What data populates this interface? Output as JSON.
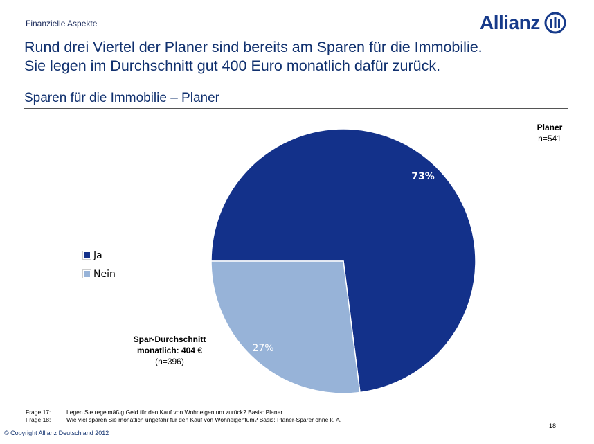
{
  "header": {
    "section": "Finanzielle Aspekte",
    "logo": "Allianz",
    "title_line1": "Rund drei Viertel der Planer sind bereits am Sparen für die Immobilie.",
    "title_line2": "Sie legen im Durchschnitt gut 400 Euro monatlich dafür zurück.",
    "subtitle": "Sparen für die Immobilie – Planer"
  },
  "chart_data": {
    "type": "pie",
    "title": "Planer",
    "n_label": "n=541",
    "slices": [
      {
        "name": "Ja",
        "value": 73,
        "label": "73%",
        "color": "#13318a"
      },
      {
        "name": "Nein",
        "value": 27,
        "label": "27%",
        "color": "#97b3d8"
      }
    ],
    "legend_placement": "left",
    "annotation": {
      "line1": "Spar-Durchschnitt",
      "line2": "monatlich: 404 €",
      "line3": "(n=396)"
    }
  },
  "footer": {
    "notes": [
      {
        "q": "Frage 17:",
        "text": "Legen Sie regelmäßig Geld für den Kauf von Wohneigentum zurück? Basis: Planer"
      },
      {
        "q": "Frage 18:",
        "text": "Wie viel sparen Sie monatlich ungefähr für den Kauf von Wohneigentum? Basis: Planer-Sparer ohne k. A."
      }
    ],
    "page": "18",
    "copyright": "© Copyright Allianz Deutschland 2012"
  }
}
